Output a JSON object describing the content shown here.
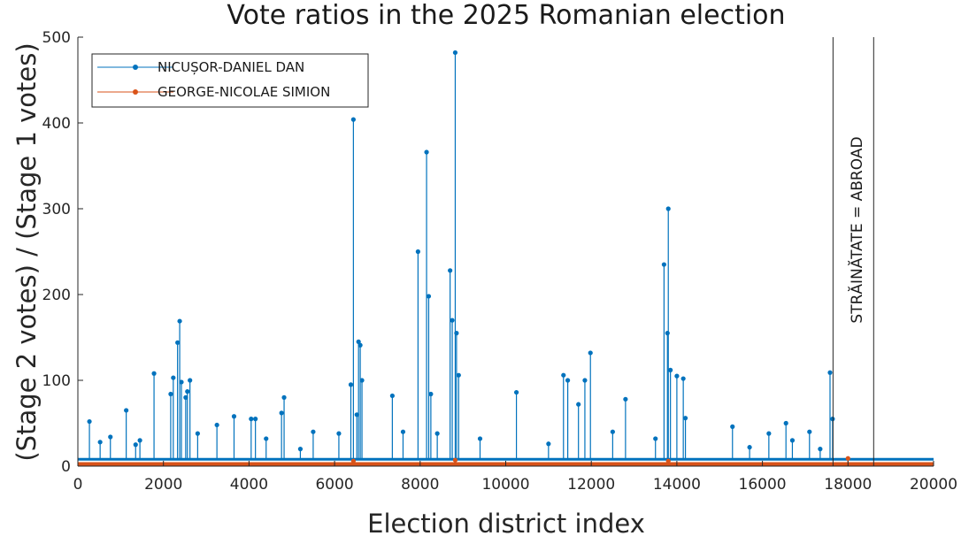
{
  "chart_data": {
    "type": "line",
    "title": "Vote ratios in the 2025 Romanian election",
    "xlabel": "Election district index",
    "ylabel": "(Stage 2 votes) / (Stage 1 votes)",
    "xlim": [
      0,
      20000
    ],
    "ylim": [
      0,
      500
    ],
    "xticks": [
      "0",
      "2000",
      "4000",
      "6000",
      "8000",
      "10000",
      "12000",
      "14000",
      "16000",
      "18000",
      "20000"
    ],
    "yticks": [
      "0",
      "100",
      "200",
      "300",
      "400",
      "500"
    ],
    "legend_position": "top-left",
    "annotation": {
      "text": "STRĂINĂTATE = ABROAD",
      "boundary_x": [
        17650,
        18600
      ]
    },
    "series": [
      {
        "name": "NICUȘOR-DANIEL DAN",
        "color": "#0072BD",
        "baseline": 8,
        "peaks": [
          [
            270,
            52
          ],
          [
            520,
            28
          ],
          [
            760,
            34
          ],
          [
            1130,
            65
          ],
          [
            1350,
            25
          ],
          [
            1450,
            30
          ],
          [
            1780,
            108
          ],
          [
            2170,
            84
          ],
          [
            2230,
            103
          ],
          [
            2330,
            144
          ],
          [
            2380,
            169
          ],
          [
            2420,
            98
          ],
          [
            2520,
            80
          ],
          [
            2560,
            87
          ],
          [
            2620,
            100
          ],
          [
            2800,
            38
          ],
          [
            3250,
            48
          ],
          [
            3650,
            58
          ],
          [
            4050,
            55
          ],
          [
            4150,
            55
          ],
          [
            4400,
            32
          ],
          [
            4760,
            62
          ],
          [
            4820,
            80
          ],
          [
            5200,
            20
          ],
          [
            5500,
            40
          ],
          [
            6100,
            38
          ],
          [
            6380,
            95
          ],
          [
            6440,
            404
          ],
          [
            6520,
            60
          ],
          [
            6560,
            145
          ],
          [
            6600,
            141
          ],
          [
            6640,
            100
          ],
          [
            7350,
            82
          ],
          [
            7600,
            40
          ],
          [
            7950,
            250
          ],
          [
            8150,
            366
          ],
          [
            8200,
            198
          ],
          [
            8250,
            84
          ],
          [
            8400,
            38
          ],
          [
            8700,
            228
          ],
          [
            8750,
            170
          ],
          [
            8820,
            482
          ],
          [
            8850,
            155
          ],
          [
            8900,
            106
          ],
          [
            9400,
            32
          ],
          [
            10250,
            86
          ],
          [
            11000,
            26
          ],
          [
            11350,
            106
          ],
          [
            11450,
            100
          ],
          [
            11700,
            72
          ],
          [
            11850,
            100
          ],
          [
            11980,
            132
          ],
          [
            12500,
            40
          ],
          [
            12800,
            78
          ],
          [
            13500,
            32
          ],
          [
            13700,
            235
          ],
          [
            13800,
            300
          ],
          [
            13780,
            155
          ],
          [
            13850,
            112
          ],
          [
            14000,
            105
          ],
          [
            14150,
            102
          ],
          [
            14200,
            56
          ],
          [
            15300,
            46
          ],
          [
            15700,
            22
          ],
          [
            16150,
            38
          ],
          [
            16550,
            50
          ],
          [
            16700,
            30
          ],
          [
            17100,
            40
          ],
          [
            17350,
            20
          ],
          [
            17580,
            109
          ],
          [
            17640,
            55
          ]
        ]
      },
      {
        "name": "GEORGE-NICOLAE SIMION",
        "color": "#D95319",
        "baseline": 2,
        "peaks": [
          [
            6440,
            6
          ],
          [
            8820,
            7
          ],
          [
            13800,
            6
          ],
          [
            18000,
            9
          ]
        ]
      }
    ]
  }
}
